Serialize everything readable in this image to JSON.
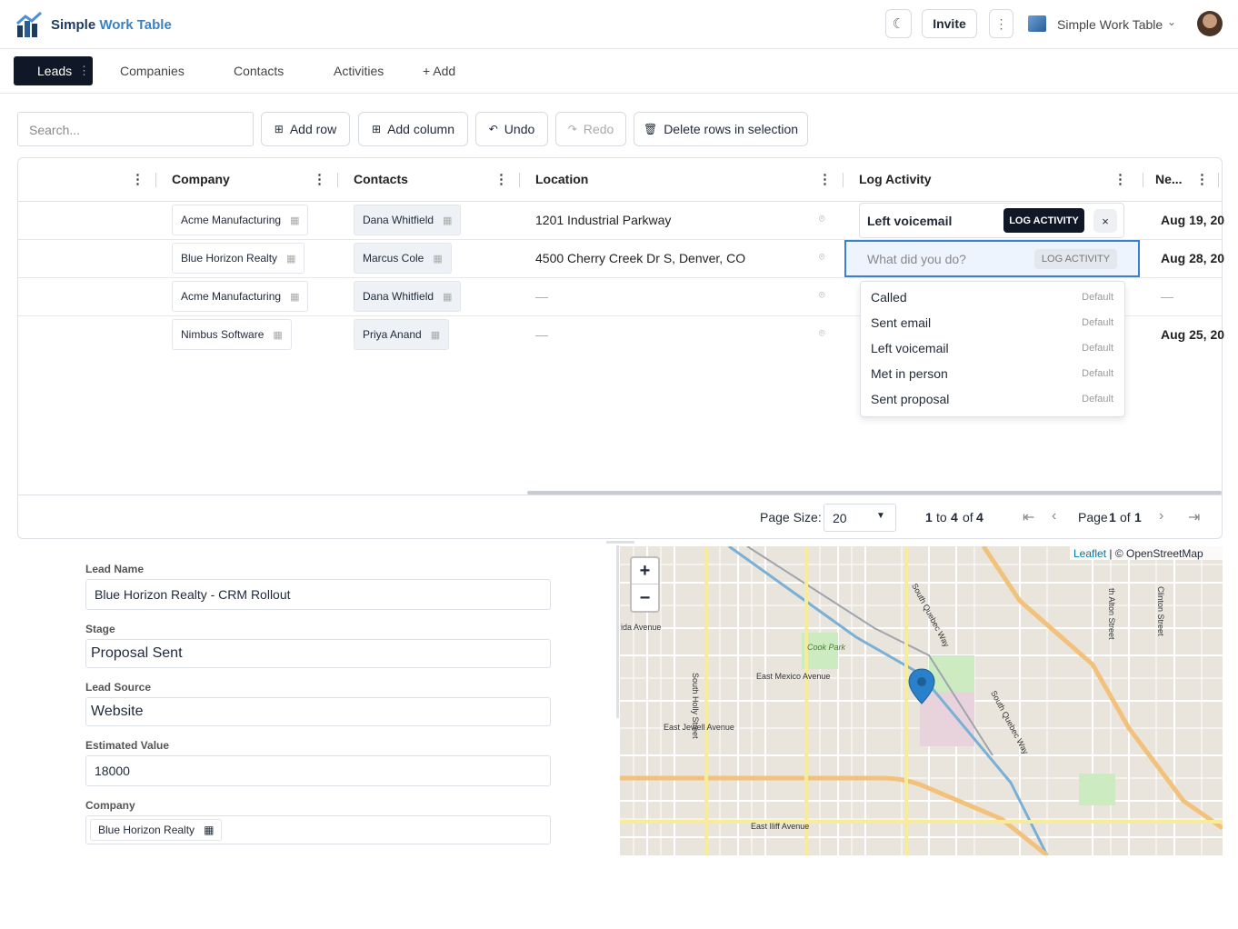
{
  "header": {
    "app_name_start": "Simple",
    "app_name_end": "Work Table",
    "invite": "Invite",
    "workspace": "Simple Work Table"
  },
  "tabs": [
    "Leads",
    "Companies",
    "Contacts",
    "Activities",
    "+ Add"
  ],
  "toolbar": {
    "search_placeholder": "Search...",
    "buttons": [
      "Add row",
      "Add column",
      "Undo",
      "Redo",
      "Delete rows in selection"
    ]
  },
  "table": {
    "columns": [
      "Company",
      "Contacts",
      "Location",
      "Log Activity",
      "Ne..."
    ],
    "rows": [
      {
        "company": "Acme Manufacturing",
        "contact": "Dana Whitfield",
        "location": "1201 Industrial Parkway",
        "next": "Aug 19, 20"
      },
      {
        "company": "Blue Horizon Realty",
        "contact": "Marcus Cole",
        "location": "4500 Cherry Creek Dr S, Denver, CO",
        "next": "Aug 28, 20"
      },
      {
        "company": "Acme Manufacturing",
        "contact": "Dana Whitfield",
        "location": "—",
        "next": "—"
      },
      {
        "company": "Nimbus Software",
        "contact": "Priya Anand",
        "location": "—",
        "next": "Aug 25, 20"
      }
    ]
  },
  "log_activity": {
    "value": "Left voicemail",
    "button": "LOG ACTIVITY",
    "input_placeholder": "What did you do?",
    "input_button": "LOG ACTIVITY",
    "options": [
      {
        "label": "Called",
        "tag": "Default"
      },
      {
        "label": "Sent email",
        "tag": "Default"
      },
      {
        "label": "Left voicemail",
        "tag": "Default"
      },
      {
        "label": "Met in person",
        "tag": "Default"
      },
      {
        "label": "Sent proposal",
        "tag": "Default"
      }
    ]
  },
  "pagination": {
    "page_size_label": "Page Size:",
    "page_size": "20",
    "from": 1,
    "to_word": "to",
    "to": 4,
    "of_word": "of",
    "total": 4,
    "page_word": "Page",
    "page": 1,
    "pages": 1
  },
  "form": [
    {
      "label": "Lead Name",
      "value": "Blue Horizon Realty - CRM Rollout"
    },
    {
      "label": "Stage",
      "value": "Proposal Sent"
    },
    {
      "label": "Lead Source",
      "value": "Website"
    },
    {
      "label": "Estimated Value",
      "value": "18000"
    },
    {
      "label": "Company",
      "value": "Blue Horizon Realty"
    }
  ],
  "map": {
    "zoom_in": "+",
    "zoom_out": "−",
    "attribution_leaflet": "Leaflet",
    "attribution_osm": "| © OpenStreetMap",
    "labels": [
      "Cook Park",
      "East Mexico Avenue",
      "East Jewell Avenue",
      "East Iliff Avenue",
      "South Quebec Way",
      "South Quebec Way",
      "South Holly Street",
      "ida Avenue",
      "Clinton Street",
      "th Alton Street"
    ]
  }
}
